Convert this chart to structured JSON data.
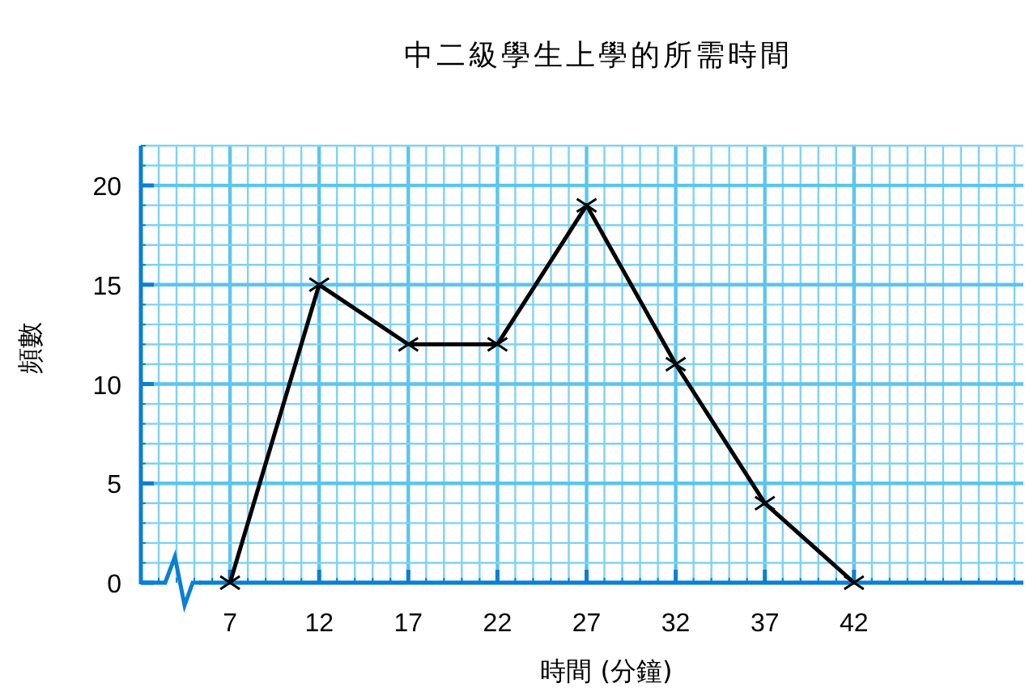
{
  "chart_data": {
    "type": "line",
    "title": "中二級學生上學的所需時間",
    "xlabel": "時間 (分鐘)",
    "ylabel": "頻數",
    "x": [
      7,
      12,
      17,
      22,
      27,
      32,
      37,
      42
    ],
    "series": [
      {
        "color": "#000000",
        "values": [
          0,
          15,
          12,
          12,
          19,
          11,
          4,
          0
        ]
      }
    ],
    "xlim": [
      2,
      51.5
    ],
    "xticks": [
      {
        "value": 2,
        "label": null
      },
      {
        "value": 3,
        "label": null
      },
      {
        "value": 4,
        "label": null
      },
      {
        "value": 5,
        "label": null
      },
      {
        "value": 6,
        "label": null
      },
      7,
      {
        "value": 8,
        "label": null
      },
      {
        "value": 9,
        "label": null
      },
      {
        "value": 10,
        "label": null
      },
      {
        "value": 11,
        "label": null
      },
      12,
      {
        "value": 13,
        "label": null
      },
      {
        "value": 14,
        "label": null
      },
      {
        "value": 15,
        "label": null
      },
      {
        "value": 16,
        "label": null
      },
      17,
      {
        "value": 18,
        "label": null
      },
      {
        "value": 19,
        "label": null
      },
      {
        "value": 20,
        "label": null
      },
      {
        "value": 21,
        "label": null
      },
      22,
      {
        "value": 23,
        "label": null
      },
      {
        "value": 24,
        "label": null
      },
      {
        "value": 25,
        "label": null
      },
      {
        "value": 26,
        "label": null
      },
      27,
      {
        "value": 28,
        "label": null
      },
      {
        "value": 29,
        "label": null
      },
      {
        "value": 30,
        "label": null
      },
      {
        "value": 31,
        "label": null
      },
      32,
      {
        "value": 33,
        "label": null
      },
      {
        "value": 34,
        "label": null
      },
      {
        "value": 35,
        "label": null
      },
      {
        "value": 36,
        "label": null
      },
      37,
      {
        "value": 38,
        "label": null
      },
      {
        "value": 39,
        "label": null
      },
      {
        "value": 40,
        "label": null
      },
      {
        "value": 41,
        "label": null
      },
      42,
      {
        "value": 43,
        "label": null
      },
      {
        "value": 44,
        "label": null
      },
      {
        "value": 45,
        "label": null
      },
      {
        "value": 46,
        "label": null
      },
      {
        "value": 47,
        "label": null
      },
      {
        "value": 48,
        "label": null
      },
      {
        "value": 49,
        "label": null
      },
      {
        "value": 50,
        "label": null
      },
      {
        "value": 51,
        "label": null
      }
    ],
    "ylim": [
      0,
      22
    ],
    "yticks": [
      0,
      {
        "value": 1,
        "label": null
      },
      {
        "value": 2,
        "label": null
      },
      {
        "value": 3,
        "label": null
      },
      {
        "value": 4,
        "label": null
      },
      5,
      {
        "value": 6,
        "label": null
      },
      {
        "value": 7,
        "label": null
      },
      {
        "value": 8,
        "label": null
      },
      {
        "value": 9,
        "label": null
      },
      10,
      {
        "value": 11,
        "label": null
      },
      {
        "value": 12,
        "label": null
      },
      {
        "value": 13,
        "label": null
      },
      {
        "value": 14,
        "label": null
      },
      15,
      {
        "value": 16,
        "label": null
      },
      {
        "value": 17,
        "label": null
      },
      {
        "value": 18,
        "label": null
      },
      {
        "value": 19,
        "label": null
      },
      20,
      {
        "value": 21,
        "label": null
      },
      {
        "value": 22,
        "label": null
      }
    ],
    "grid": true,
    "marker": "cross",
    "line_style": "solid"
  }
}
